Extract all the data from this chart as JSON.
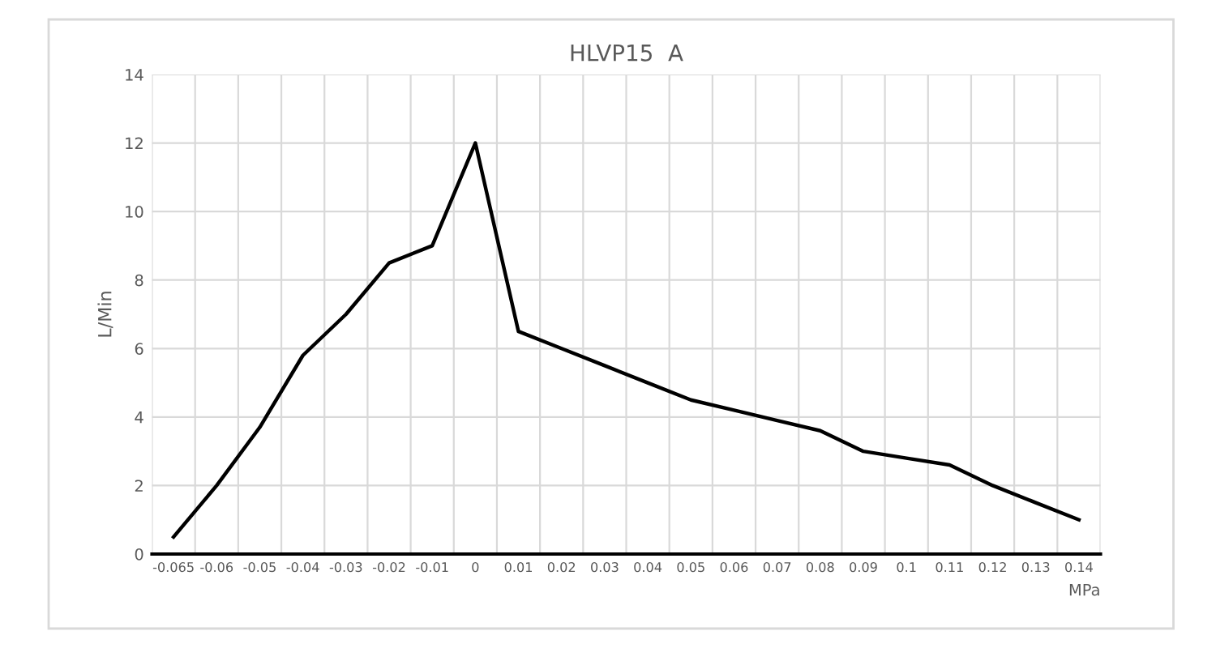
{
  "chart_data": {
    "type": "line",
    "title": "HLVP15  A",
    "xlabel": "MPa",
    "ylabel": "L/Min",
    "categories": [
      "-0.065",
      "-0.06",
      "-0.05",
      "-0.04",
      "-0.03",
      "-0.02",
      "-0.01",
      "0",
      "0.01",
      "0.02",
      "0.03",
      "0.04",
      "0.05",
      "0.06",
      "0.07",
      "0.08",
      "0.09",
      "0.1",
      "0.11",
      "0.12",
      "0.13",
      "0.14"
    ],
    "series": [
      {
        "color": "#000000",
        "values": [
          0.5,
          2,
          3.7,
          5.8,
          7,
          8.5,
          9,
          12,
          6.5,
          6.0,
          5.5,
          5.0,
          4.5,
          4.2,
          3.9,
          3.6,
          3.0,
          2.8,
          2.6,
          2.0,
          1.5,
          1.0
        ]
      }
    ],
    "ylim": [
      0,
      14
    ],
    "yticks": [
      0,
      2,
      4,
      6,
      8,
      10,
      12,
      14
    ],
    "grid": true,
    "marker": "none",
    "line_style": "solid"
  }
}
